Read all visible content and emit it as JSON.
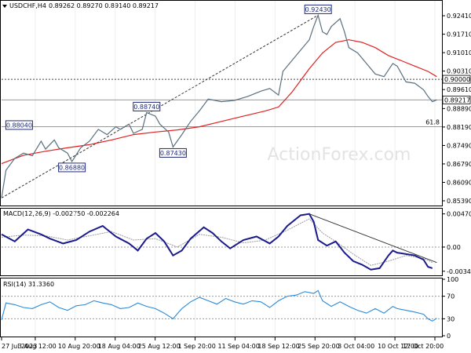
{
  "header": {
    "symbol": "USDCHF,H4",
    "ohlc": "0.89262 0.89270 0.89140 0.89217"
  },
  "watermark": "ActionForex.com",
  "colors": {
    "price": "#5a7080",
    "ma": "#e02020",
    "macd": "#1a1a8c",
    "signal": "#9a9a9a",
    "rsi": "#2a8ad8",
    "label_border": "#1f2a7a",
    "trendline": "#333333"
  },
  "chart_data": [
    {
      "type": "line",
      "panel": "price",
      "ylim": [
        0.8539,
        0.9265
      ],
      "y_ticks": [
        "0.92410",
        "0.91710",
        "0.91010",
        "0.90310",
        "0.89610",
        "0.88890",
        "0.88190",
        "0.87490",
        "0.86790",
        "0.86090",
        "0.85390"
      ],
      "x_labels": [
        "27 Jul 2023",
        "3 Aug 12:00",
        "10 Aug 20:00",
        "18 Aug 04:00",
        "25 Aug 12:00",
        "1 Sep 20:00",
        "11 Sep 04:00",
        "18 Sep 12:00",
        "25 Sep 20:00",
        "3 Oct 04:00",
        "10 Oct 12:00",
        "17 Oct 20:00"
      ],
      "x_range": [
        0,
        100
      ],
      "series": [
        {
          "role": "price",
          "points": [
            [
              0,
              0.855
            ],
            [
              1,
              0.8655
            ],
            [
              3,
              0.87
            ],
            [
              5,
              0.872
            ],
            [
              7,
              0.871
            ],
            [
              9,
              0.8765
            ],
            [
              10,
              0.8735
            ],
            [
              12,
              0.877
            ],
            [
              13,
              0.874
            ],
            [
              15,
              0.872
            ],
            [
              16,
              0.8688
            ],
            [
              18,
              0.874
            ],
            [
              20,
              0.8765
            ],
            [
              22,
              0.881
            ],
            [
              24,
              0.879
            ],
            [
              26,
              0.882
            ],
            [
              27,
              0.881
            ],
            [
              29,
              0.883
            ],
            [
              30,
              0.8795
            ],
            [
              32,
              0.881
            ],
            [
              33,
              0.8874
            ],
            [
              35,
              0.886
            ],
            [
              36,
              0.883
            ],
            [
              38,
              0.88
            ],
            [
              39,
              0.8743
            ],
            [
              41,
              0.879
            ],
            [
              43,
              0.884
            ],
            [
              45,
              0.888
            ],
            [
              47,
              0.8925
            ],
            [
              50,
              0.8915
            ],
            [
              53,
              0.892
            ],
            [
              56,
              0.8935
            ],
            [
              59,
              0.8955
            ],
            [
              61,
              0.8965
            ],
            [
              63,
              0.894
            ],
            [
              64,
              0.903
            ],
            [
              66,
              0.907
            ],
            [
              68,
              0.911
            ],
            [
              70,
              0.915
            ],
            [
              71,
              0.92
            ],
            [
              72,
              0.9243
            ],
            [
              73,
              0.918
            ],
            [
              74,
              0.917
            ],
            [
              75,
              0.92
            ],
            [
              77,
              0.923
            ],
            [
              78,
              0.918
            ],
            [
              79,
              0.912
            ],
            [
              81,
              0.91
            ],
            [
              83,
              0.906
            ],
            [
              85,
              0.902
            ],
            [
              87,
              0.901
            ],
            [
              89,
              0.906
            ],
            [
              90,
              0.905
            ],
            [
              92,
              0.899
            ],
            [
              94,
              0.8985
            ],
            [
              96,
              0.896
            ],
            [
              97,
              0.8935
            ],
            [
              98,
              0.8915
            ],
            [
              99,
              0.8922
            ]
          ]
        },
        {
          "role": "ma",
          "points": [
            [
              0,
              0.868
            ],
            [
              5,
              0.8712
            ],
            [
              10,
              0.8727
            ],
            [
              15,
              0.874
            ],
            [
              20,
              0.8752
            ],
            [
              25,
              0.877
            ],
            [
              30,
              0.879
            ],
            [
              35,
              0.88
            ],
            [
              40,
              0.8808
            ],
            [
              45,
              0.882
            ],
            [
              50,
              0.884
            ],
            [
              55,
              0.886
            ],
            [
              60,
              0.888
            ],
            [
              63,
              0.8895
            ],
            [
              66,
              0.895
            ],
            [
              70,
              0.904
            ],
            [
              73,
              0.91
            ],
            [
              76,
              0.914
            ],
            [
              79,
              0.915
            ],
            [
              82,
              0.914
            ],
            [
              85,
              0.912
            ],
            [
              88,
              0.909
            ],
            [
              91,
              0.907
            ],
            [
              94,
              0.905
            ],
            [
              97,
              0.903
            ],
            [
              99,
              0.901
            ]
          ]
        }
      ],
      "reference_lines": [
        {
          "value": 0.9,
          "label": "0.90000",
          "style": "dotted"
        },
        {
          "value": 0.89217,
          "label": "0.89217",
          "style": "solid"
        },
        {
          "value": 0.882,
          "label": "61.8",
          "style": "solid"
        }
      ],
      "trendline": {
        "from": [
          0,
          0.855
        ],
        "to": [
          72,
          0.9243
        ]
      },
      "price_labels": [
        {
          "text": "0.88040",
          "x": 4,
          "y": 0.8804
        },
        {
          "text": "0.86880",
          "x": 16,
          "y": 0.8688
        },
        {
          "text": "0.88740",
          "x": 33,
          "y": 0.8874
        },
        {
          "text": "0.87430",
          "x": 39,
          "y": 0.8743
        },
        {
          "text": "0.92430",
          "x": 72,
          "y": 0.9243
        }
      ]
    },
    {
      "type": "line",
      "panel": "macd",
      "title": "MACD(12,26,9) -0.002750 -0.002264",
      "ylim": [
        -0.0039,
        0.005
      ],
      "y_ticks": [
        "0.004704",
        "0.00",
        "-0.003429"
      ],
      "zero_line": 0.0,
      "series": [
        {
          "role": "macd",
          "points": [
            [
              0,
              0.0018
            ],
            [
              3,
              0.0008
            ],
            [
              6,
              0.0025
            ],
            [
              9,
              0.0018
            ],
            [
              11,
              0.0012
            ],
            [
              14,
              0.0005
            ],
            [
              17,
              0.001
            ],
            [
              20,
              0.0022
            ],
            [
              23,
              0.003
            ],
            [
              26,
              0.0015
            ],
            [
              29,
              0.0005
            ],
            [
              31,
              -0.0005
            ],
            [
              33,
              0.0012
            ],
            [
              35,
              0.002
            ],
            [
              37,
              0.0008
            ],
            [
              39,
              -0.0012
            ],
            [
              41,
              -0.0005
            ],
            [
              43,
              0.0012
            ],
            [
              46,
              0.0028
            ],
            [
              48,
              0.002
            ],
            [
              50,
              0.0008
            ],
            [
              52,
              -0.0002
            ],
            [
              55,
              0.001
            ],
            [
              58,
              0.0015
            ],
            [
              61,
              0.0005
            ],
            [
              63,
              0.0015
            ],
            [
              65,
              0.003
            ],
            [
              68,
              0.0045
            ],
            [
              70,
              0.0047
            ],
            [
              71,
              0.0036
            ],
            [
              72,
              0.001
            ],
            [
              74,
              0.0002
            ],
            [
              76,
              0.0008
            ],
            [
              78,
              -0.0008
            ],
            [
              80,
              -0.002
            ],
            [
              82,
              -0.0025
            ],
            [
              84,
              -0.0032
            ],
            [
              86,
              -0.003
            ],
            [
              88,
              -0.0012
            ],
            [
              89,
              -0.0005
            ],
            [
              90,
              -0.0008
            ],
            [
              92,
              -0.001
            ],
            [
              94,
              -0.0012
            ],
            [
              96,
              -0.0018
            ],
            [
              97,
              -0.0028
            ],
            [
              98,
              -0.003
            ]
          ]
        },
        {
          "role": "signal",
          "points": [
            [
              0,
              0.0014
            ],
            [
              5,
              0.0017
            ],
            [
              10,
              0.0016
            ],
            [
              15,
              0.001
            ],
            [
              20,
              0.0016
            ],
            [
              25,
              0.0022
            ],
            [
              30,
              0.001
            ],
            [
              35,
              0.0012
            ],
            [
              40,
              0.0
            ],
            [
              45,
              0.0018
            ],
            [
              50,
              0.0014
            ],
            [
              55,
              0.0006
            ],
            [
              60,
              0.001
            ],
            [
              65,
              0.0024
            ],
            [
              70,
              0.004
            ],
            [
              73,
              0.002
            ],
            [
              76,
              0.0008
            ],
            [
              80,
              -0.001
            ],
            [
              84,
              -0.0026
            ],
            [
              88,
              -0.002
            ],
            [
              92,
              -0.0012
            ],
            [
              96,
              -0.0016
            ],
            [
              98,
              -0.0022
            ]
          ]
        }
      ],
      "trendline": {
        "from": [
          70,
          0.0047
        ],
        "to": [
          99,
          -0.0022
        ]
      }
    },
    {
      "type": "line",
      "panel": "rsi",
      "title": "RSI(14) 31.3360",
      "ylim": [
        0,
        100
      ],
      "y_ticks": [
        "100",
        "70",
        "50",
        "30",
        "0"
      ],
      "levels": [
        70,
        30
      ],
      "series": [
        {
          "role": "rsi",
          "points": [
            [
              0,
              28
            ],
            [
              1,
              58
            ],
            [
              3,
              55
            ],
            [
              5,
              50
            ],
            [
              7,
              48
            ],
            [
              9,
              55
            ],
            [
              11,
              60
            ],
            [
              13,
              50
            ],
            [
              15,
              45
            ],
            [
              17,
              53
            ],
            [
              19,
              55
            ],
            [
              21,
              62
            ],
            [
              23,
              58
            ],
            [
              25,
              55
            ],
            [
              27,
              48
            ],
            [
              29,
              50
            ],
            [
              31,
              58
            ],
            [
              33,
              52
            ],
            [
              35,
              48
            ],
            [
              37,
              40
            ],
            [
              39,
              30
            ],
            [
              41,
              48
            ],
            [
              43,
              60
            ],
            [
              45,
              68
            ],
            [
              47,
              62
            ],
            [
              49,
              56
            ],
            [
              51,
              66
            ],
            [
              53,
              60
            ],
            [
              55,
              56
            ],
            [
              57,
              62
            ],
            [
              59,
              60
            ],
            [
              61,
              50
            ],
            [
              63,
              62
            ],
            [
              65,
              70
            ],
            [
              67,
              72
            ],
            [
              69,
              78
            ],
            [
              71,
              75
            ],
            [
              72,
              80
            ],
            [
              73,
              62
            ],
            [
              75,
              52
            ],
            [
              77,
              60
            ],
            [
              79,
              52
            ],
            [
              81,
              45
            ],
            [
              83,
              40
            ],
            [
              85,
              48
            ],
            [
              87,
              40
            ],
            [
              89,
              52
            ],
            [
              90,
              48
            ],
            [
              92,
              45
            ],
            [
              94,
              42
            ],
            [
              96,
              38
            ],
            [
              97,
              30
            ],
            [
              98,
              26
            ],
            [
              99,
              31
            ]
          ]
        }
      ]
    }
  ]
}
